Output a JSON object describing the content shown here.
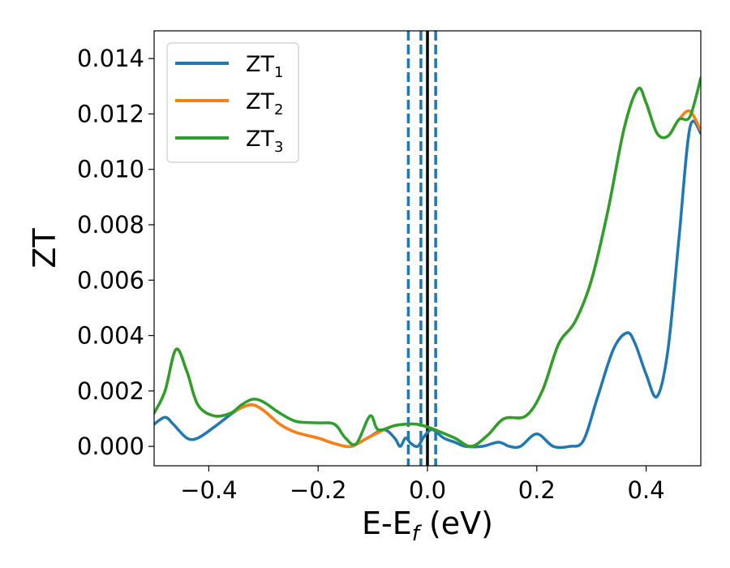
{
  "chart_data": {
    "type": "line",
    "xlabel_main": "E-E",
    "xlabel_sub": "f",
    "xlabel_unit": " (eV)",
    "ylabel": "ZT",
    "xlim": [
      -0.5,
      0.5
    ],
    "ylim": [
      -0.0007,
      0.015
    ],
    "x_ticks": [
      -0.4,
      -0.2,
      0.0,
      0.2,
      0.4
    ],
    "x_tick_labels": [
      "−0.4",
      "−0.2",
      "0.0",
      "0.2",
      "0.4"
    ],
    "y_ticks": [
      0.0,
      0.002,
      0.004,
      0.006,
      0.008,
      0.01,
      0.012,
      0.014
    ],
    "y_tick_labels": [
      "0.000",
      "0.002",
      "0.004",
      "0.006",
      "0.008",
      "0.010",
      "0.012",
      "0.014"
    ],
    "grid": false,
    "legend_position": "top-left",
    "vertical_lines": [
      {
        "x": -0.035,
        "style": "dashed",
        "color": "#1f77b4"
      },
      {
        "x": -0.012,
        "style": "dashed",
        "color": "#1f77b4"
      },
      {
        "x": 0.015,
        "style": "dashed",
        "color": "#1f77b4"
      },
      {
        "x": 0.0,
        "style": "solid",
        "color": "#000000"
      }
    ],
    "series": [
      {
        "name_main": "ZT",
        "name_sub": "1",
        "color": "#1f77b4",
        "points": [
          [
            -0.5,
            0.0008
          ],
          [
            -0.48,
            0.00105
          ],
          [
            -0.465,
            0.0008
          ],
          [
            -0.44,
            0.0003
          ],
          [
            -0.42,
            0.0003
          ],
          [
            -0.39,
            0.0007
          ],
          [
            -0.36,
            0.00115
          ],
          [
            -0.34,
            0.0014
          ],
          [
            -0.32,
            0.0015
          ],
          [
            -0.3,
            0.0013
          ],
          [
            -0.27,
            0.0008
          ],
          [
            -0.24,
            0.0005
          ],
          [
            -0.2,
            0.0003
          ],
          [
            -0.17,
            0.0001
          ],
          [
            -0.14,
            0.0
          ],
          [
            -0.11,
            0.0003
          ],
          [
            -0.08,
            0.0006
          ],
          [
            -0.06,
            0.0003
          ],
          [
            -0.05,
            0.0
          ],
          [
            -0.04,
            0.0003
          ],
          [
            -0.03,
            0.0001
          ],
          [
            -0.018,
            0.0
          ],
          [
            -0.008,
            0.0003
          ],
          [
            0.0,
            0.0005
          ],
          [
            0.01,
            0.0006
          ],
          [
            0.03,
            0.0003
          ],
          [
            0.05,
            0.00015
          ],
          [
            0.07,
            0.0
          ],
          [
            0.1,
            0.0
          ],
          [
            0.13,
            0.00015
          ],
          [
            0.15,
            0.0
          ],
          [
            0.17,
            0.0
          ],
          [
            0.2,
            0.00045
          ],
          [
            0.23,
            0.0
          ],
          [
            0.26,
            0.0
          ],
          [
            0.285,
            0.0002
          ],
          [
            0.31,
            0.0017
          ],
          [
            0.34,
            0.0035
          ],
          [
            0.365,
            0.0041
          ],
          [
            0.38,
            0.0037
          ],
          [
            0.4,
            0.0026
          ],
          [
            0.42,
            0.0018
          ],
          [
            0.44,
            0.0035
          ],
          [
            0.46,
            0.0075
          ],
          [
            0.48,
            0.0115
          ],
          [
            0.5,
            0.0113
          ]
        ]
      },
      {
        "name_main": "ZT",
        "name_sub": "2",
        "color": "#ff7f0e",
        "points": [
          [
            -0.5,
            0.0012
          ],
          [
            -0.48,
            0.002
          ],
          [
            -0.46,
            0.0035
          ],
          [
            -0.44,
            0.0027
          ],
          [
            -0.42,
            0.0015
          ],
          [
            -0.39,
            0.0011
          ],
          [
            -0.36,
            0.0012
          ],
          [
            -0.34,
            0.0014
          ],
          [
            -0.32,
            0.0015
          ],
          [
            -0.3,
            0.0013
          ],
          [
            -0.27,
            0.0008
          ],
          [
            -0.24,
            0.0005
          ],
          [
            -0.2,
            0.0003
          ],
          [
            -0.17,
            0.0001
          ],
          [
            -0.14,
            0.0
          ],
          [
            -0.11,
            0.0003
          ],
          [
            -0.08,
            0.0006
          ],
          [
            -0.06,
            0.00075
          ],
          [
            -0.04,
            0.0008
          ],
          [
            -0.02,
            0.0008
          ],
          [
            0.0,
            0.0007
          ],
          [
            0.02,
            0.00055
          ],
          [
            0.05,
            0.0003
          ],
          [
            0.08,
            0.0
          ],
          [
            0.11,
            0.0004
          ],
          [
            0.14,
            0.001
          ],
          [
            0.18,
            0.0011
          ],
          [
            0.21,
            0.002
          ],
          [
            0.24,
            0.0037
          ],
          [
            0.27,
            0.0045
          ],
          [
            0.3,
            0.006
          ],
          [
            0.33,
            0.0085
          ],
          [
            0.36,
            0.0115
          ],
          [
            0.385,
            0.0129
          ],
          [
            0.4,
            0.0124
          ],
          [
            0.42,
            0.0113
          ],
          [
            0.44,
            0.0112
          ],
          [
            0.46,
            0.0118
          ],
          [
            0.48,
            0.0121
          ],
          [
            0.5,
            0.0114
          ]
        ]
      },
      {
        "name_main": "ZT",
        "name_sub": "3",
        "color": "#2ca02c",
        "points": [
          [
            -0.5,
            0.0012
          ],
          [
            -0.48,
            0.002
          ],
          [
            -0.46,
            0.0035
          ],
          [
            -0.44,
            0.0027
          ],
          [
            -0.42,
            0.0015
          ],
          [
            -0.39,
            0.0011
          ],
          [
            -0.36,
            0.0012
          ],
          [
            -0.34,
            0.0015
          ],
          [
            -0.32,
            0.0017
          ],
          [
            -0.3,
            0.0016
          ],
          [
            -0.27,
            0.0012
          ],
          [
            -0.24,
            0.0009
          ],
          [
            -0.2,
            0.00085
          ],
          [
            -0.17,
            0.0008
          ],
          [
            -0.15,
            0.0003
          ],
          [
            -0.13,
            0.0001
          ],
          [
            -0.105,
            0.0011
          ],
          [
            -0.09,
            0.0006
          ],
          [
            -0.06,
            0.00075
          ],
          [
            -0.04,
            0.0008
          ],
          [
            -0.02,
            0.0008
          ],
          [
            0.0,
            0.0007
          ],
          [
            0.02,
            0.00055
          ],
          [
            0.05,
            0.0003
          ],
          [
            0.08,
            0.0
          ],
          [
            0.11,
            0.0004
          ],
          [
            0.14,
            0.001
          ],
          [
            0.18,
            0.0011
          ],
          [
            0.21,
            0.002
          ],
          [
            0.24,
            0.0037
          ],
          [
            0.27,
            0.0045
          ],
          [
            0.3,
            0.006
          ],
          [
            0.33,
            0.0085
          ],
          [
            0.36,
            0.0115
          ],
          [
            0.385,
            0.0129
          ],
          [
            0.4,
            0.0124
          ],
          [
            0.42,
            0.0113
          ],
          [
            0.44,
            0.0112
          ],
          [
            0.46,
            0.0118
          ],
          [
            0.48,
            0.0119
          ],
          [
            0.5,
            0.0133
          ]
        ]
      }
    ]
  }
}
